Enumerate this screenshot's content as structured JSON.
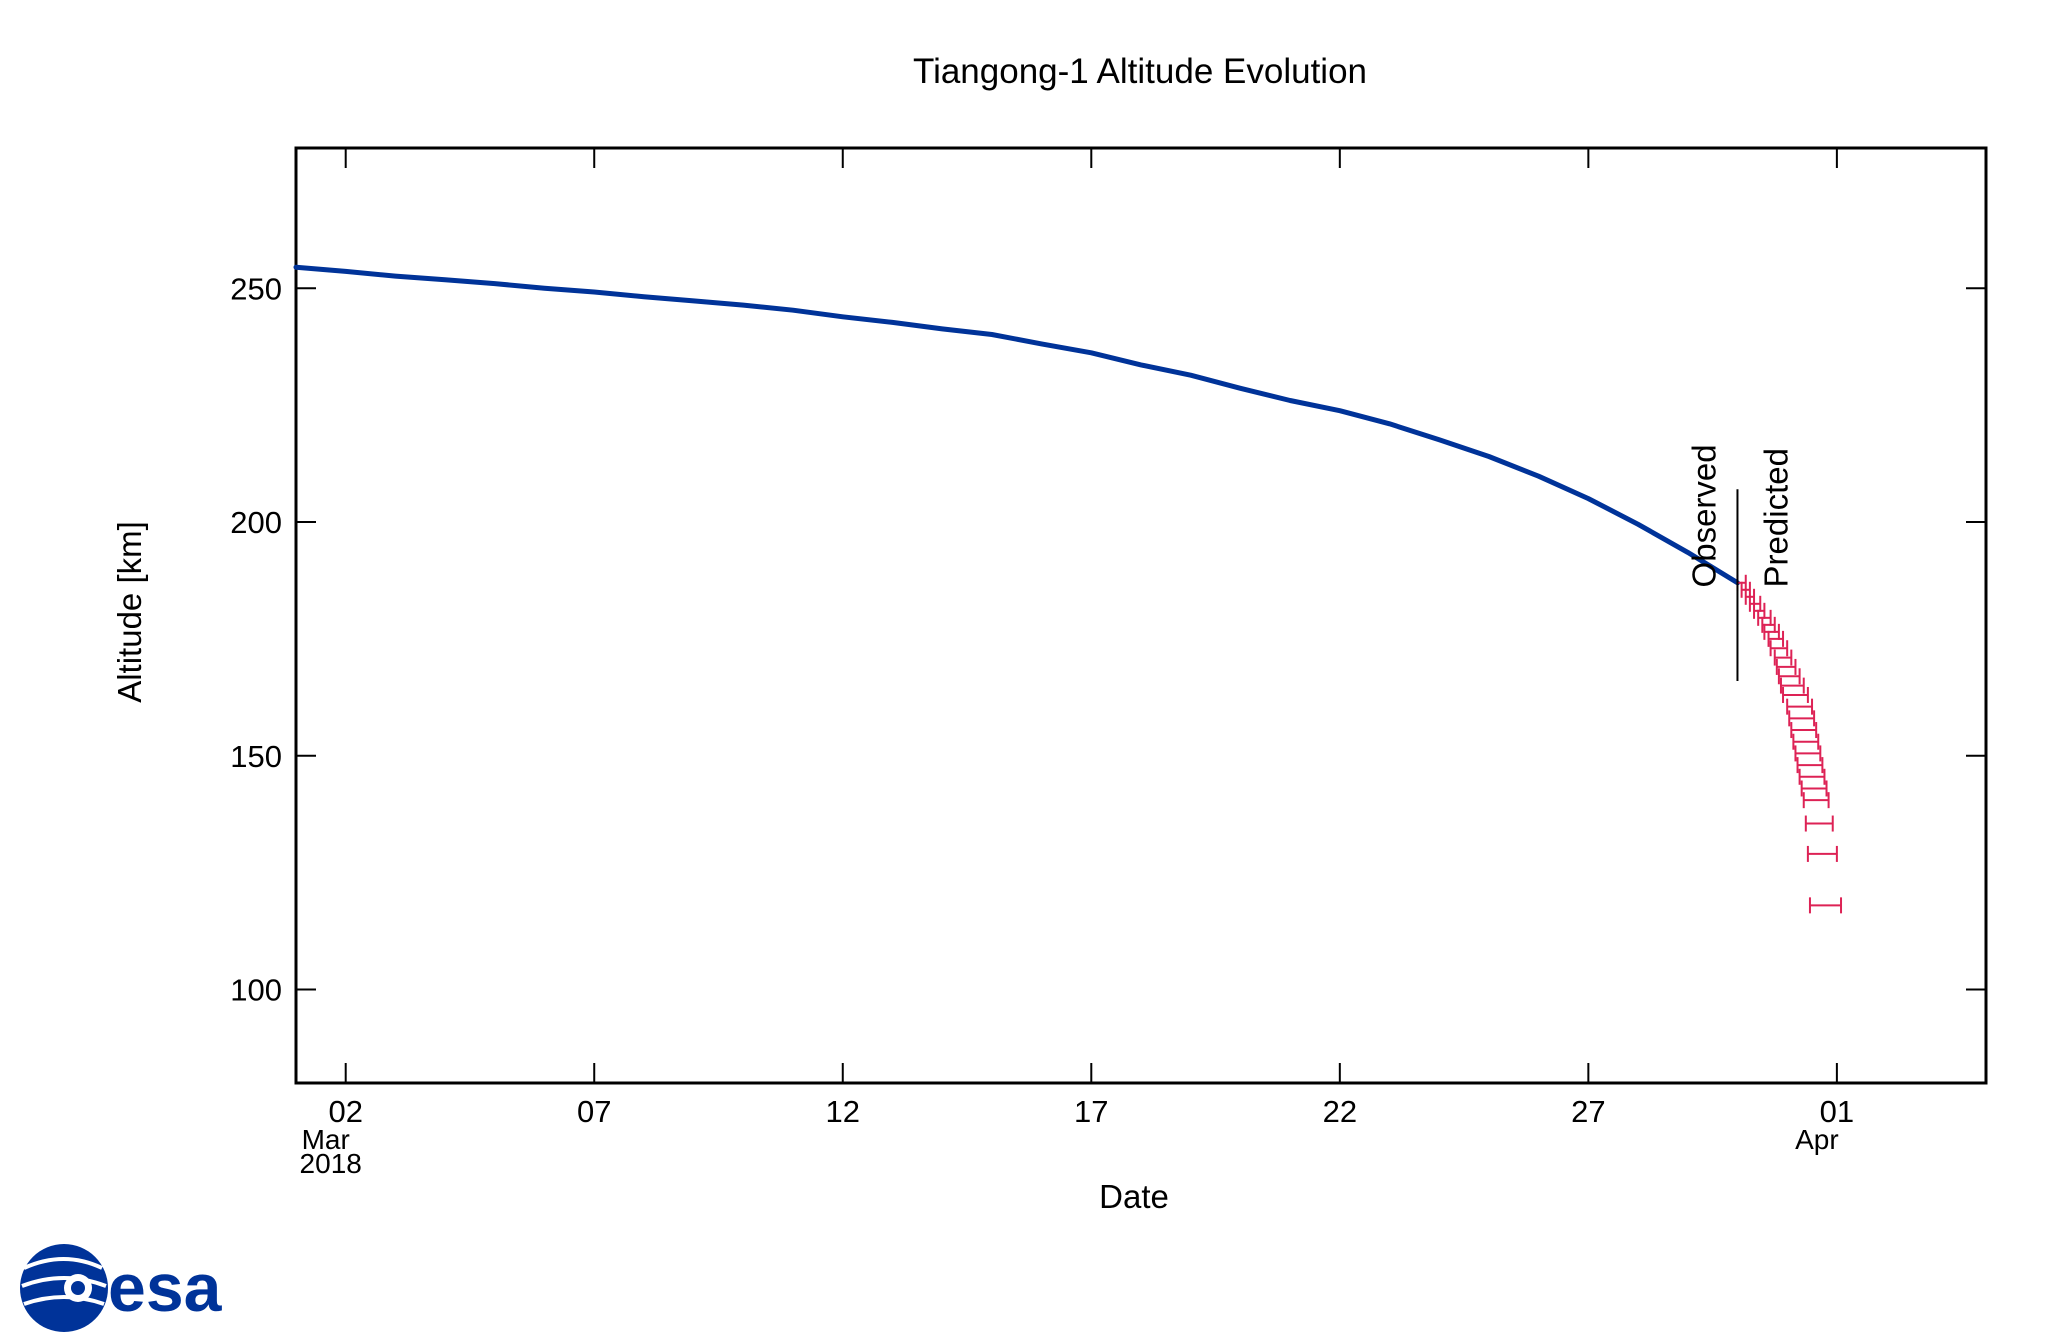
{
  "logo": {
    "text": "esa",
    "color": "#003399"
  },
  "chart_data": {
    "type": "line",
    "title": "Tiangong-1 Altitude Evolution",
    "xlabel": "Date",
    "ylabel": "Altitude [km]",
    "xlim": [
      "2018-03-01",
      "2018-04-04"
    ],
    "ylim": [
      80,
      280
    ],
    "grid": false,
    "x_ticks": [
      {
        "value": "2018-03-02",
        "label": "02",
        "sublabel": "Mar",
        "sublabel2": "2018"
      },
      {
        "value": "2018-03-07",
        "label": "07"
      },
      {
        "value": "2018-03-12",
        "label": "12"
      },
      {
        "value": "2018-03-17",
        "label": "17"
      },
      {
        "value": "2018-03-22",
        "label": "22"
      },
      {
        "value": "2018-03-27",
        "label": "27"
      },
      {
        "value": "2018-04-01",
        "label": "01",
        "sublabel": "Apr"
      }
    ],
    "y_ticks": [
      100,
      150,
      200,
      250
    ],
    "annotations": [
      {
        "text": "Observed",
        "x": "2018-03-30"
      },
      {
        "text": "Predicted",
        "x": "2018-03-30"
      }
    ],
    "divider_x": "2018-03-30",
    "series": [
      {
        "type": "line",
        "color": "#003399",
        "x": [
          "2018-03-01",
          "2018-03-02",
          "2018-03-03",
          "2018-03-04",
          "2018-03-05",
          "2018-03-06",
          "2018-03-07",
          "2018-03-08",
          "2018-03-09",
          "2018-03-10",
          "2018-03-11",
          "2018-03-12",
          "2018-03-13",
          "2018-03-14",
          "2018-03-15",
          "2018-03-16",
          "2018-03-17",
          "2018-03-18",
          "2018-03-19",
          "2018-03-20",
          "2018-03-21",
          "2018-03-22",
          "2018-03-23",
          "2018-03-24",
          "2018-03-25",
          "2018-03-26",
          "2018-03-27",
          "2018-03-28",
          "2018-03-29",
          "2018-03-30"
        ],
        "y": [
          254.5,
          253.6,
          252.6,
          251.8,
          251.0,
          250.0,
          249.2,
          248.2,
          247.3,
          246.4,
          245.3,
          243.9,
          242.7,
          241.3,
          240.1,
          238.1,
          236.2,
          233.6,
          231.4,
          228.6,
          226.0,
          223.8,
          221.0,
          217.6,
          214.0,
          209.8,
          205.0,
          199.5,
          193.5,
          187.0
        ]
      },
      {
        "type": "errorbar",
        "color": "#dd2255",
        "points": [
          {
            "y": 187.0,
            "lo": "2018-03-30T00:00",
            "hi": "2018-03-30T04:00"
          },
          {
            "y": 185.5,
            "lo": "2018-03-30T02:00",
            "hi": "2018-03-30T06:00"
          },
          {
            "y": 184.0,
            "lo": "2018-03-30T04:00",
            "hi": "2018-03-30T08:00"
          },
          {
            "y": 182.5,
            "lo": "2018-03-30T06:00",
            "hi": "2018-03-30T11:00"
          },
          {
            "y": 181.0,
            "lo": "2018-03-30T08:00",
            "hi": "2018-03-30T13:00"
          },
          {
            "y": 179.5,
            "lo": "2018-03-30T10:00",
            "hi": "2018-03-30T16:00"
          },
          {
            "y": 178.0,
            "lo": "2018-03-30T12:00",
            "hi": "2018-03-30T18:00"
          },
          {
            "y": 176.5,
            "lo": "2018-03-30T13:00",
            "hi": "2018-03-30T20:00"
          },
          {
            "y": 175.0,
            "lo": "2018-03-30T15:00",
            "hi": "2018-03-30T22:00"
          },
          {
            "y": 173.0,
            "lo": "2018-03-30T16:00",
            "hi": "2018-03-31T00:00"
          },
          {
            "y": 171.0,
            "lo": "2018-03-30T18:00",
            "hi": "2018-03-31T02:00"
          },
          {
            "y": 169.0,
            "lo": "2018-03-30T19:00",
            "hi": "2018-03-31T04:00"
          },
          {
            "y": 167.0,
            "lo": "2018-03-30T20:00",
            "hi": "2018-03-31T06:00"
          },
          {
            "y": 165.0,
            "lo": "2018-03-30T21:00",
            "hi": "2018-03-31T08:00"
          },
          {
            "y": 163.0,
            "lo": "2018-03-30T22:00",
            "hi": "2018-03-31T10:00"
          },
          {
            "y": 160.5,
            "lo": "2018-03-31T00:00",
            "hi": "2018-03-31T12:00"
          },
          {
            "y": 158.0,
            "lo": "2018-03-31T01:00",
            "hi": "2018-03-31T13:00"
          },
          {
            "y": 155.5,
            "lo": "2018-03-31T02:00",
            "hi": "2018-03-31T14:00"
          },
          {
            "y": 153.0,
            "lo": "2018-03-31T03:00",
            "hi": "2018-03-31T15:00"
          },
          {
            "y": 150.5,
            "lo": "2018-03-31T04:00",
            "hi": "2018-03-31T16:00"
          },
          {
            "y": 148.0,
            "lo": "2018-03-31T05:00",
            "hi": "2018-03-31T17:00"
          },
          {
            "y": 145.5,
            "lo": "2018-03-31T06:00",
            "hi": "2018-03-31T18:00"
          },
          {
            "y": 143.0,
            "lo": "2018-03-31T07:00",
            "hi": "2018-03-31T19:00"
          },
          {
            "y": 140.5,
            "lo": "2018-03-31T08:00",
            "hi": "2018-03-31T20:00"
          },
          {
            "y": 135.5,
            "lo": "2018-03-31T09:00",
            "hi": "2018-03-31T22:00"
          },
          {
            "y": 129.0,
            "lo": "2018-03-31T10:00",
            "hi": "2018-04-01T00:00"
          },
          {
            "y": 118.0,
            "lo": "2018-03-31T11:00",
            "hi": "2018-04-01T02:00"
          }
        ]
      }
    ]
  }
}
